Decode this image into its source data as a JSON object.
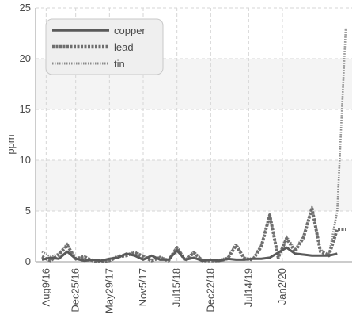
{
  "chart_data": {
    "type": "line",
    "ylabel": "ppm",
    "xlabel": "",
    "ylim": [
      0,
      25
    ],
    "yticks": [
      0,
      5,
      10,
      15,
      20,
      25
    ],
    "grid": true,
    "legend_position": "top-left",
    "x_tick_labels": [
      "Aug9/16",
      "Dec25/16",
      "May29/17",
      "Nov5/17",
      "Jul15/18",
      "Dec22/18",
      "Jul14/19",
      "Jan2/20"
    ],
    "x_tick_positions": [
      0.5,
      4,
      8,
      12,
      16,
      20,
      24.5,
      28.5
    ],
    "series": [
      {
        "name": "copper",
        "color": "#5a5a5a",
        "style": "solid",
        "values": [
          0.2,
          0.4,
          0.3,
          1.0,
          0.3,
          0.1,
          0.2,
          0.1,
          0.3,
          0.4,
          0.8,
          0.6,
          0.2,
          0.6,
          0.2,
          0.2,
          1.1,
          0.2,
          0.4,
          0.1,
          0.2,
          0.1,
          0.3,
          0.2,
          0.2,
          0.3,
          0.3,
          0.4,
          0.9,
          1.4,
          0.8,
          0.7,
          0.6,
          0.6,
          0.6,
          0.8
        ]
      },
      {
        "name": "lead",
        "color": "#6e6e6e",
        "style": "dashed",
        "values": [
          0.5,
          0.1,
          0.7,
          1.6,
          0.3,
          0.5,
          0.1,
          0.0,
          0.1,
          0.5,
          0.6,
          0.9,
          0.5,
          0.1,
          0.4,
          0.1,
          1.4,
          0.1,
          0.9,
          0.1,
          0.1,
          0.1,
          0.3,
          1.6,
          0.3,
          0.2,
          1.5,
          4.6,
          0.4,
          2.3,
          1.0,
          2.4,
          5.3,
          1.0,
          0.6,
          3.2,
          3.2
        ]
      },
      {
        "name": "tin",
        "color": "#8a8a8a",
        "style": "dotted",
        "values": [
          1.0,
          0.5,
          0.8,
          1.8,
          0.2,
          0.6,
          0.1,
          0.1,
          0.2,
          0.6,
          0.7,
          1.0,
          0.6,
          0.2,
          0.5,
          0.2,
          1.5,
          0.2,
          1.0,
          0.2,
          0.2,
          0.2,
          0.4,
          1.8,
          0.4,
          0.3,
          1.7,
          4.7,
          0.5,
          2.5,
          1.2,
          2.6,
          5.4,
          1.2,
          0.7,
          5.0,
          23.0
        ]
      }
    ]
  }
}
